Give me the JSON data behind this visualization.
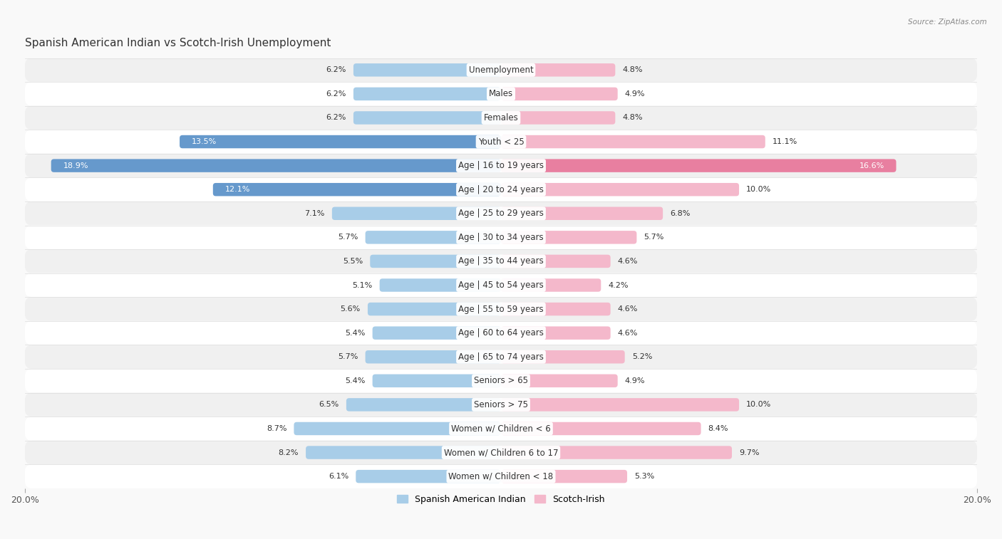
{
  "title": "Spanish American Indian vs Scotch-Irish Unemployment",
  "source": "Source: ZipAtlas.com",
  "categories": [
    "Unemployment",
    "Males",
    "Females",
    "Youth < 25",
    "Age | 16 to 19 years",
    "Age | 20 to 24 years",
    "Age | 25 to 29 years",
    "Age | 30 to 34 years",
    "Age | 35 to 44 years",
    "Age | 45 to 54 years",
    "Age | 55 to 59 years",
    "Age | 60 to 64 years",
    "Age | 65 to 74 years",
    "Seniors > 65",
    "Seniors > 75",
    "Women w/ Children < 6",
    "Women w/ Children 6 to 17",
    "Women w/ Children < 18"
  ],
  "left_values": [
    6.2,
    6.2,
    6.2,
    13.5,
    18.9,
    12.1,
    7.1,
    5.7,
    5.5,
    5.1,
    5.6,
    5.4,
    5.7,
    5.4,
    6.5,
    8.7,
    8.2,
    6.1
  ],
  "right_values": [
    4.8,
    4.9,
    4.8,
    11.1,
    16.6,
    10.0,
    6.8,
    5.7,
    4.6,
    4.2,
    4.6,
    4.6,
    5.2,
    4.9,
    10.0,
    8.4,
    9.7,
    5.3
  ],
  "left_color_normal": "#a8cde8",
  "left_color_dark": "#6699cc",
  "right_color_normal": "#f4b8cb",
  "right_color_dark": "#e87fa0",
  "row_colors": [
    "#f0f0f0",
    "#ffffff"
  ],
  "max_value": 20.0,
  "bar_height": 0.55,
  "title_fontsize": 11,
  "label_fontsize": 8.5,
  "value_fontsize": 8,
  "legend_labels": [
    "Spanish American Indian",
    "Scotch-Irish"
  ],
  "legend_colors": [
    "#a8cde8",
    "#f4b8cb"
  ]
}
